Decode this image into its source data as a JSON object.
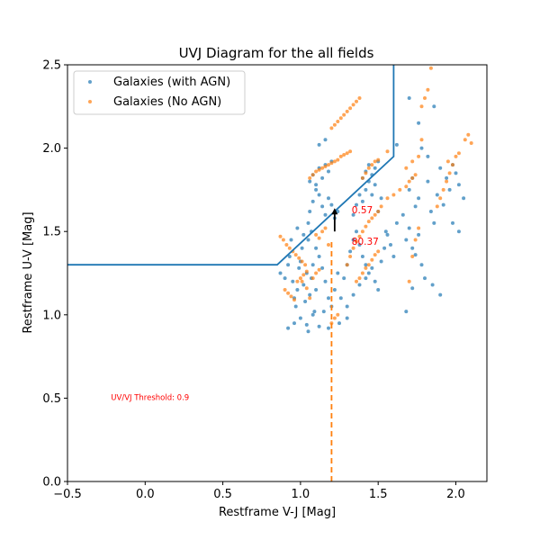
{
  "chart_data": {
    "type": "scatter",
    "title": "UVJ Diagram for the all fields",
    "xlabel": "Restframe V-J [Mag]",
    "ylabel": "Restframe U-V [Mag]",
    "xlim": [
      -0.5,
      2.2
    ],
    "ylim": [
      0.0,
      2.5
    ],
    "xticks": [
      -0.5,
      0.0,
      0.5,
      1.0,
      1.5,
      2.0
    ],
    "xtick_labels": [
      "−0.5",
      "0.0",
      "0.5",
      "1.0",
      "1.5",
      "2.0"
    ],
    "yticks": [
      0.0,
      0.5,
      1.0,
      1.5,
      2.0,
      2.5
    ],
    "ytick_labels": [
      "0.0",
      "0.5",
      "1.0",
      "1.5",
      "2.0",
      "2.5"
    ],
    "grid": false,
    "legend": "top-left",
    "series": [
      {
        "name": "Galaxies (with AGN)",
        "color": "#1f77b4",
        "points": [
          [
            0.87,
            1.25
          ],
          [
            0.9,
            1.22
          ],
          [
            0.92,
            1.3
          ],
          [
            0.93,
            1.35
          ],
          [
            0.95,
            1.2
          ],
          [
            0.96,
            1.1
          ],
          [
            0.97,
            1.05
          ],
          [
            0.98,
            1.15
          ],
          [
            0.99,
            1.28
          ],
          [
            1.0,
            1.32
          ],
          [
            1.01,
            1.4
          ],
          [
            1.02,
            1.18
          ],
          [
            1.03,
            1.08
          ],
          [
            1.04,
            1.25
          ],
          [
            1.05,
            1.45
          ],
          [
            1.06,
            1.12
          ],
          [
            1.07,
            1.22
          ],
          [
            1.08,
            1.3
          ],
          [
            1.09,
            1.02
          ],
          [
            1.1,
            1.15
          ],
          [
            0.92,
            0.92
          ],
          [
            0.96,
            0.95
          ],
          [
            1.0,
            0.98
          ],
          [
            1.04,
            0.94
          ],
          [
            1.08,
            1.0
          ],
          [
            1.12,
            0.93
          ],
          [
            1.15,
            1.02
          ],
          [
            0.94,
            1.45
          ],
          [
            0.98,
            1.52
          ],
          [
            1.02,
            1.48
          ],
          [
            1.05,
            1.55
          ],
          [
            1.07,
            1.5
          ],
          [
            1.1,
            1.4
          ],
          [
            1.12,
            1.35
          ],
          [
            1.14,
            1.28
          ],
          [
            1.16,
            1.2
          ],
          [
            1.18,
            1.1
          ],
          [
            1.2,
            1.05
          ],
          [
            1.22,
            1.15
          ],
          [
            1.24,
            1.25
          ],
          [
            1.06,
            1.62
          ],
          [
            1.08,
            1.68
          ],
          [
            1.1,
            1.75
          ],
          [
            1.12,
            1.72
          ],
          [
            1.14,
            1.65
          ],
          [
            1.16,
            1.6
          ],
          [
            1.18,
            1.7
          ],
          [
            1.2,
            1.66
          ],
          [
            1.22,
            1.58
          ],
          [
            1.24,
            1.62
          ],
          [
            1.06,
            1.8
          ],
          [
            1.08,
            1.84
          ],
          [
            1.1,
            1.78
          ],
          [
            1.12,
            1.88
          ],
          [
            1.14,
            1.82
          ],
          [
            1.16,
            1.9
          ],
          [
            1.18,
            1.86
          ],
          [
            1.2,
            1.92
          ],
          [
            1.12,
            2.02
          ],
          [
            1.16,
            2.05
          ],
          [
            1.26,
            1.1
          ],
          [
            1.28,
            1.22
          ],
          [
            1.3,
            1.3
          ],
          [
            1.32,
            1.38
          ],
          [
            1.34,
            1.45
          ],
          [
            1.36,
            1.5
          ],
          [
            1.38,
            1.42
          ],
          [
            1.4,
            1.35
          ],
          [
            1.42,
            1.3
          ],
          [
            1.44,
            1.25
          ],
          [
            1.3,
            1.05
          ],
          [
            1.34,
            1.12
          ],
          [
            1.38,
            1.18
          ],
          [
            1.42,
            1.22
          ],
          [
            1.46,
            1.28
          ],
          [
            1.48,
            1.2
          ],
          [
            1.5,
            1.15
          ],
          [
            1.52,
            1.32
          ],
          [
            1.54,
            1.4
          ],
          [
            1.56,
            1.48
          ],
          [
            1.34,
            1.6
          ],
          [
            1.36,
            1.66
          ],
          [
            1.38,
            1.72
          ],
          [
            1.4,
            1.68
          ],
          [
            1.42,
            1.75
          ],
          [
            1.44,
            1.8
          ],
          [
            1.46,
            1.72
          ],
          [
            1.48,
            1.78
          ],
          [
            1.5,
            1.62
          ],
          [
            1.52,
            1.7
          ],
          [
            1.4,
            1.82
          ],
          [
            1.42,
            1.86
          ],
          [
            1.44,
            1.9
          ],
          [
            1.46,
            1.84
          ],
          [
            1.48,
            1.88
          ],
          [
            1.5,
            1.92
          ],
          [
            1.55,
            1.5
          ],
          [
            1.58,
            1.42
          ],
          [
            1.6,
            1.35
          ],
          [
            1.62,
            1.55
          ],
          [
            1.66,
            1.6
          ],
          [
            1.68,
            1.45
          ],
          [
            1.7,
            1.52
          ],
          [
            1.72,
            1.4
          ],
          [
            1.74,
            1.36
          ],
          [
            1.76,
            1.48
          ],
          [
            1.78,
            1.3
          ],
          [
            1.8,
            1.22
          ],
          [
            1.7,
            1.75
          ],
          [
            1.72,
            1.82
          ],
          [
            1.74,
            1.65
          ],
          [
            1.76,
            1.7
          ],
          [
            1.82,
            1.8
          ],
          [
            1.84,
            1.62
          ],
          [
            1.86,
            1.55
          ],
          [
            1.88,
            1.72
          ],
          [
            1.9,
            1.88
          ],
          [
            1.92,
            1.66
          ],
          [
            1.94,
            1.82
          ],
          [
            1.96,
            1.75
          ],
          [
            1.98,
            1.9
          ],
          [
            2.0,
            1.85
          ],
          [
            2.02,
            1.78
          ],
          [
            2.05,
            1.7
          ],
          [
            1.85,
            1.18
          ],
          [
            1.9,
            1.12
          ],
          [
            1.72,
            1.16
          ],
          [
            1.68,
            1.02
          ],
          [
            1.25,
            0.95
          ],
          [
            1.3,
            0.98
          ],
          [
            1.05,
            0.9
          ],
          [
            1.18,
            0.92
          ],
          [
            1.62,
            2.02
          ],
          [
            1.7,
            2.3
          ],
          [
            1.76,
            2.15
          ],
          [
            1.86,
            2.25
          ],
          [
            1.98,
            1.55
          ],
          [
            2.02,
            1.5
          ],
          [
            1.82,
            1.95
          ],
          [
            1.78,
            2.0
          ]
        ]
      },
      {
        "name": "Galaxies (No AGN)",
        "color": "#ff7f0e",
        "points": [
          [
            0.87,
            1.47
          ],
          [
            0.89,
            1.45
          ],
          [
            0.91,
            1.42
          ],
          [
            0.93,
            1.4
          ],
          [
            0.95,
            1.38
          ],
          [
            0.97,
            1.36
          ],
          [
            0.99,
            1.34
          ],
          [
            1.01,
            1.32
          ],
          [
            1.03,
            1.3
          ],
          [
            0.9,
            1.15
          ],
          [
            0.92,
            1.13
          ],
          [
            0.94,
            1.11
          ],
          [
            0.96,
            1.09
          ],
          [
            0.98,
            1.2
          ],
          [
            1.0,
            1.22
          ],
          [
            1.02,
            1.24
          ],
          [
            1.04,
            1.26
          ],
          [
            1.01,
            1.2
          ],
          [
            1.04,
            1.16
          ],
          [
            1.06,
            1.1
          ],
          [
            1.08,
            1.22
          ],
          [
            1.1,
            1.25
          ],
          [
            1.12,
            1.27
          ],
          [
            1.1,
            1.48
          ],
          [
            1.12,
            1.46
          ],
          [
            1.14,
            1.5
          ],
          [
            1.16,
            1.52
          ],
          [
            1.06,
            1.82
          ],
          [
            1.08,
            1.84
          ],
          [
            1.1,
            1.86
          ],
          [
            1.12,
            1.87
          ],
          [
            1.14,
            1.88
          ],
          [
            1.16,
            1.89
          ],
          [
            1.18,
            1.9
          ],
          [
            1.2,
            1.91
          ],
          [
            1.22,
            1.92
          ],
          [
            1.24,
            1.93
          ],
          [
            1.26,
            1.95
          ],
          [
            1.28,
            1.96
          ],
          [
            1.3,
            1.97
          ],
          [
            1.32,
            1.98
          ],
          [
            1.2,
            2.12
          ],
          [
            1.22,
            2.14
          ],
          [
            1.24,
            2.16
          ],
          [
            1.26,
            2.18
          ],
          [
            1.28,
            2.2
          ],
          [
            1.3,
            2.22
          ],
          [
            1.32,
            2.24
          ],
          [
            1.34,
            2.26
          ],
          [
            1.36,
            2.28
          ],
          [
            1.38,
            2.3
          ],
          [
            1.4,
            1.82
          ],
          [
            1.42,
            1.85
          ],
          [
            1.44,
            1.88
          ],
          [
            1.46,
            1.9
          ],
          [
            1.48,
            1.92
          ],
          [
            1.5,
            1.93
          ],
          [
            1.3,
            1.3
          ],
          [
            1.32,
            1.35
          ],
          [
            1.34,
            1.4
          ],
          [
            1.36,
            1.44
          ],
          [
            1.38,
            1.47
          ],
          [
            1.4,
            1.5
          ],
          [
            1.42,
            1.53
          ],
          [
            1.44,
            1.56
          ],
          [
            1.46,
            1.58
          ],
          [
            1.48,
            1.6
          ],
          [
            1.5,
            1.62
          ],
          [
            1.36,
            1.2
          ],
          [
            1.38,
            1.22
          ],
          [
            1.4,
            1.25
          ],
          [
            1.42,
            1.28
          ],
          [
            1.44,
            1.3
          ],
          [
            1.46,
            1.33
          ],
          [
            1.48,
            1.36
          ],
          [
            1.5,
            1.38
          ],
          [
            1.52,
            1.65
          ],
          [
            1.56,
            1.7
          ],
          [
            1.6,
            1.72
          ],
          [
            1.64,
            1.75
          ],
          [
            1.68,
            1.77
          ],
          [
            1.7,
            1.8
          ],
          [
            1.72,
            1.82
          ],
          [
            1.74,
            1.84
          ],
          [
            1.68,
            1.88
          ],
          [
            1.72,
            1.92
          ],
          [
            1.76,
            1.95
          ],
          [
            1.78,
            2.25
          ],
          [
            1.8,
            2.3
          ],
          [
            1.82,
            2.35
          ],
          [
            1.84,
            2.48
          ],
          [
            1.88,
            1.65
          ],
          [
            1.9,
            1.7
          ],
          [
            1.92,
            1.75
          ],
          [
            1.94,
            1.8
          ],
          [
            1.96,
            1.85
          ],
          [
            1.98,
            1.9
          ],
          [
            2.0,
            1.95
          ],
          [
            2.02,
            1.97
          ],
          [
            2.06,
            2.05
          ],
          [
            2.08,
            2.08
          ],
          [
            2.1,
            2.03
          ],
          [
            1.7,
            1.2
          ],
          [
            1.72,
            1.35
          ],
          [
            1.74,
            1.45
          ],
          [
            1.76,
            1.52
          ],
          [
            1.18,
            1.42
          ],
          [
            1.2,
            0.95
          ],
          [
            1.22,
            0.98
          ],
          [
            1.24,
            1.0
          ],
          [
            1.56,
            1.98
          ],
          [
            1.78,
            2.05
          ],
          [
            1.95,
            1.92
          ]
        ]
      }
    ],
    "boundary_line": {
      "color": "#1f77b4",
      "points": [
        [
          -0.5,
          1.3
        ],
        [
          0.85,
          1.3
        ],
        [
          1.6,
          1.95
        ],
        [
          1.6,
          2.5
        ]
      ]
    },
    "threshold_line": {
      "x": 1.2,
      "color": "#ff7f0e",
      "style": "dashed"
    },
    "arrow": {
      "x": 1.22,
      "y_start": 1.5,
      "y_end": 1.64
    },
    "annotations": [
      {
        "x": 1.33,
        "y": 1.61,
        "text": "0.57",
        "color": "#ff0000"
      },
      {
        "x": 1.33,
        "y": 1.42,
        "text": "80.37",
        "color": "#ff0000"
      },
      {
        "x": -0.22,
        "y": 0.49,
        "text": "UV/VJ Threshold: 0.9",
        "color": "#ff0000"
      }
    ]
  }
}
